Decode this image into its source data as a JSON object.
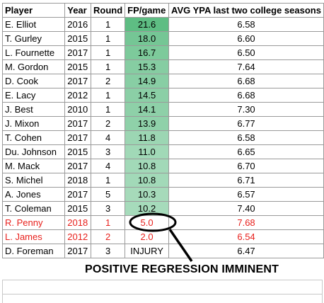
{
  "table": {
    "headers": {
      "player": "Player",
      "year": "Year",
      "round": "Round",
      "fp": "FP/game",
      "ypa": "AVG YPA last two college seasons"
    },
    "rows": [
      {
        "player": "E. Elliot",
        "year": "2016",
        "round": "1",
        "fp": "21.6",
        "ypa": "6.58",
        "fp_value": 21.6,
        "highlight": "none"
      },
      {
        "player": "T. Gurley",
        "year": "2015",
        "round": "1",
        "fp": "18.0",
        "ypa": "6.60",
        "fp_value": 18.0,
        "highlight": "none"
      },
      {
        "player": "L. Fournette",
        "year": "2017",
        "round": "1",
        "fp": "16.7",
        "ypa": "6.50",
        "fp_value": 16.7,
        "highlight": "none"
      },
      {
        "player": "M. Gordon",
        "year": "2015",
        "round": "1",
        "fp": "15.3",
        "ypa": "7.64",
        "fp_value": 15.3,
        "highlight": "none"
      },
      {
        "player": "D. Cook",
        "year": "2017",
        "round": "2",
        "fp": "14.9",
        "ypa": "6.68",
        "fp_value": 14.9,
        "highlight": "none"
      },
      {
        "player": "E. Lacy",
        "year": "2012",
        "round": "1",
        "fp": "14.5",
        "ypa": "6.68",
        "fp_value": 14.5,
        "highlight": "none"
      },
      {
        "player": "J. Best",
        "year": "2010",
        "round": "1",
        "fp": "14.1",
        "ypa": "7.30",
        "fp_value": 14.1,
        "highlight": "none"
      },
      {
        "player": "J. Mixon",
        "year": "2017",
        "round": "2",
        "fp": "13.9",
        "ypa": "6.77",
        "fp_value": 13.9,
        "highlight": "none"
      },
      {
        "player": "T. Cohen",
        "year": "2017",
        "round": "4",
        "fp": "11.8",
        "ypa": "6.58",
        "fp_value": 11.8,
        "highlight": "none"
      },
      {
        "player": "Du. Johnson",
        "year": "2015",
        "round": "3",
        "fp": "11.0",
        "ypa": "6.65",
        "fp_value": 11.0,
        "highlight": "none"
      },
      {
        "player": "M. Mack",
        "year": "2017",
        "round": "4",
        "fp": "10.8",
        "ypa": "6.70",
        "fp_value": 10.8,
        "highlight": "none"
      },
      {
        "player": "S. Michel",
        "year": "2018",
        "round": "1",
        "fp": "10.8",
        "ypa": "6.71",
        "fp_value": 10.8,
        "highlight": "none"
      },
      {
        "player": "A. Jones",
        "year": "2017",
        "round": "5",
        "fp": "10.3",
        "ypa": "6.57",
        "fp_value": 10.3,
        "highlight": "none"
      },
      {
        "player": "T. Coleman",
        "year": "2015",
        "round": "3",
        "fp": "10.2",
        "ypa": "7.40",
        "fp_value": 10.2,
        "highlight": "none"
      },
      {
        "player": "R. Penny",
        "year": "2018",
        "round": "1",
        "fp": "5.0",
        "ypa": "7.68",
        "fp_value": 5.0,
        "highlight": "red"
      },
      {
        "player": "L. James",
        "year": "2012",
        "round": "2",
        "fp": "2.0",
        "ypa": "6.54",
        "fp_value": 2.0,
        "highlight": "red"
      },
      {
        "player": "D. Foreman",
        "year": "2017",
        "round": "3",
        "fp": "INJURY",
        "ypa": "6.47",
        "fp_value": null,
        "highlight": "none"
      }
    ]
  },
  "color_scale": {
    "high": "#5ebd83",
    "low": "#ffffff",
    "max": 21.6,
    "min": 0
  },
  "colors": {
    "highlight_text": "#e8201c",
    "grid_border": "#9a9a9a"
  },
  "annotation": {
    "caption": "POSITIVE REGRESSION IMMINENT",
    "shape": "ellipse-with-arrow"
  }
}
